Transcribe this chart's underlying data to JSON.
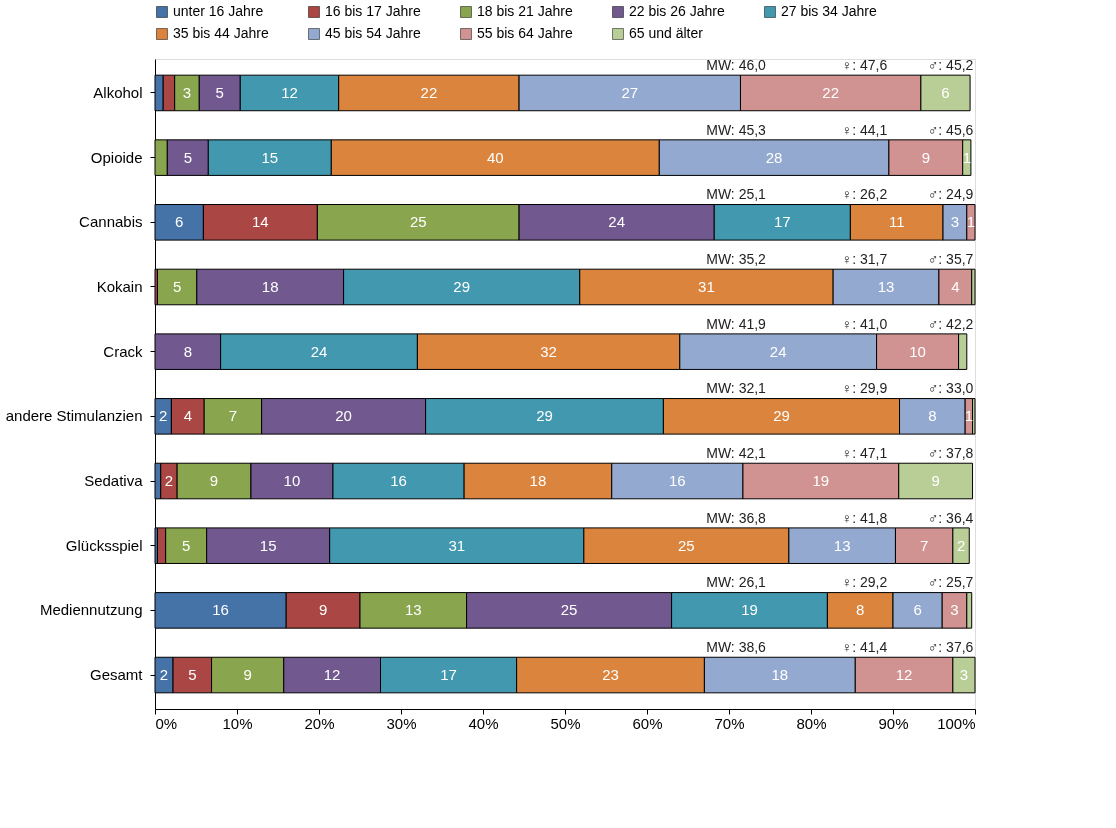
{
  "chart_data": {
    "type": "bar",
    "orientation": "horizontal",
    "stacked": true,
    "legend": "top",
    "grid": false,
    "categories": [
      "Alkohol",
      "Opioide",
      "Cannabis",
      "Kokain",
      "Crack",
      "andere Stimulanzien",
      "Sedativa",
      "Glücksspiel",
      "Mediennutzung",
      "Gesamt"
    ],
    "xlim": [
      0,
      100
    ],
    "xticks": [
      {
        "value": 0,
        "label": "0%"
      },
      {
        "value": 10,
        "label": "10%"
      },
      {
        "value": 20,
        "label": "20%"
      },
      {
        "value": 30,
        "label": "30%"
      },
      {
        "value": 40,
        "label": "40%"
      },
      {
        "value": 50,
        "label": "50%"
      },
      {
        "value": 60,
        "label": "60%"
      },
      {
        "value": 70,
        "label": "70%"
      },
      {
        "value": 80,
        "label": "80%"
      },
      {
        "value": 90,
        "label": "90%"
      },
      {
        "value": 100,
        "label": "100%"
      }
    ],
    "series": [
      {
        "name": "unter 16 Jahre",
        "color": "#4572a7",
        "values": [
          1.0,
          0,
          5.9,
          0,
          0,
          2,
          0.7,
          0.3,
          16,
          2.2
        ],
        "value_labels": [
          null,
          null,
          "6",
          null,
          null,
          "2",
          null,
          null,
          "16",
          "2"
        ]
      },
      {
        "name": "16 bis 17 Jahre",
        "color": "#aa4643",
        "values": [
          1.4,
          0,
          13.9,
          0.3,
          0,
          4,
          2,
          1,
          9,
          4.7
        ],
        "value_labels": [
          null,
          null,
          "14",
          null,
          null,
          "4",
          "2",
          null,
          "9",
          "5"
        ]
      },
      {
        "name": "18 bis 21 Jahre",
        "color": "#89a54e",
        "values": [
          3,
          1.5,
          24.6,
          4.8,
          0,
          7,
          9,
          5,
          13,
          8.8
        ],
        "value_labels": [
          "3",
          null,
          "25",
          "5",
          null,
          "7",
          "9",
          "5",
          "13",
          "9"
        ]
      },
      {
        "name": "22 bis 26 Jahre",
        "color": "#71588f",
        "values": [
          5,
          5,
          23.8,
          17.9,
          8,
          20,
          10,
          15,
          25,
          11.8
        ],
        "value_labels": [
          "5",
          "5",
          "24",
          "18",
          "8",
          "20",
          "10",
          "15",
          "25",
          "12"
        ]
      },
      {
        "name": "27 bis 34 Jahre",
        "color": "#4198af",
        "values": [
          12,
          15,
          16.6,
          28.8,
          24,
          29,
          16,
          31,
          19,
          16.6
        ],
        "value_labels": [
          "12",
          "15",
          "17",
          "29",
          "24",
          "29",
          "16",
          "31",
          "19",
          "17"
        ]
      },
      {
        "name": "35 bis 44 Jahre",
        "color": "#db843d",
        "values": [
          22,
          40,
          11.3,
          30.9,
          32,
          28.8,
          18,
          25,
          8,
          22.9
        ],
        "value_labels": [
          "22",
          "40",
          "11",
          "31",
          "32",
          "29",
          "18",
          "25",
          "8",
          "23"
        ]
      },
      {
        "name": "45 bis 54 Jahre",
        "color": "#93a9cf",
        "values": [
          27,
          28,
          2.9,
          12.9,
          24,
          8,
          16,
          13,
          6,
          18.4
        ],
        "value_labels": [
          "27",
          "28",
          "3",
          "13",
          "24",
          "8",
          "16",
          "13",
          "6",
          "18"
        ]
      },
      {
        "name": "55 bis 64 Jahre",
        "color": "#d19392",
        "values": [
          22,
          9,
          1.0,
          4.0,
          10,
          0.9,
          19,
          7,
          3,
          11.9
        ],
        "value_labels": [
          "22",
          "9",
          "1",
          "4",
          "10",
          "1",
          "19",
          "7",
          "3",
          "12"
        ]
      },
      {
        "name": "65 und älter",
        "color": "#b9cd96",
        "values": [
          6,
          1,
          0,
          0.4,
          1,
          0.3,
          9,
          2,
          0.6,
          2.7
        ],
        "value_labels": [
          "6",
          "1",
          null,
          null,
          null,
          null,
          "9",
          "2",
          null,
          "3"
        ]
      }
    ],
    "annotations": [
      "MW: 46,0",
      "♀: 47,6",
      "♂: 45,2",
      "MW: 45,3",
      "♀: 44,1",
      "♂: 45,6",
      "MW: 25,1",
      "♀: 26,2",
      "♂: 24,9",
      "MW: 35,2",
      "♀: 31,7",
      "♂: 35,7",
      "MW: 41,9",
      "♀: 41,0",
      "♂: 42,2",
      "MW: 32,1",
      "♀: 29,9",
      "♂: 33,0",
      "MW: 42,1",
      "♀: 47,1",
      "♂: 37,8",
      "MW: 36,8",
      "♀: 41,8",
      "♂: 36,4",
      "MW: 26,1",
      "♀: 29,2",
      "♂: 25,7",
      "MW: 38,6",
      "♀: 41,4",
      "♂: 37,6"
    ]
  }
}
